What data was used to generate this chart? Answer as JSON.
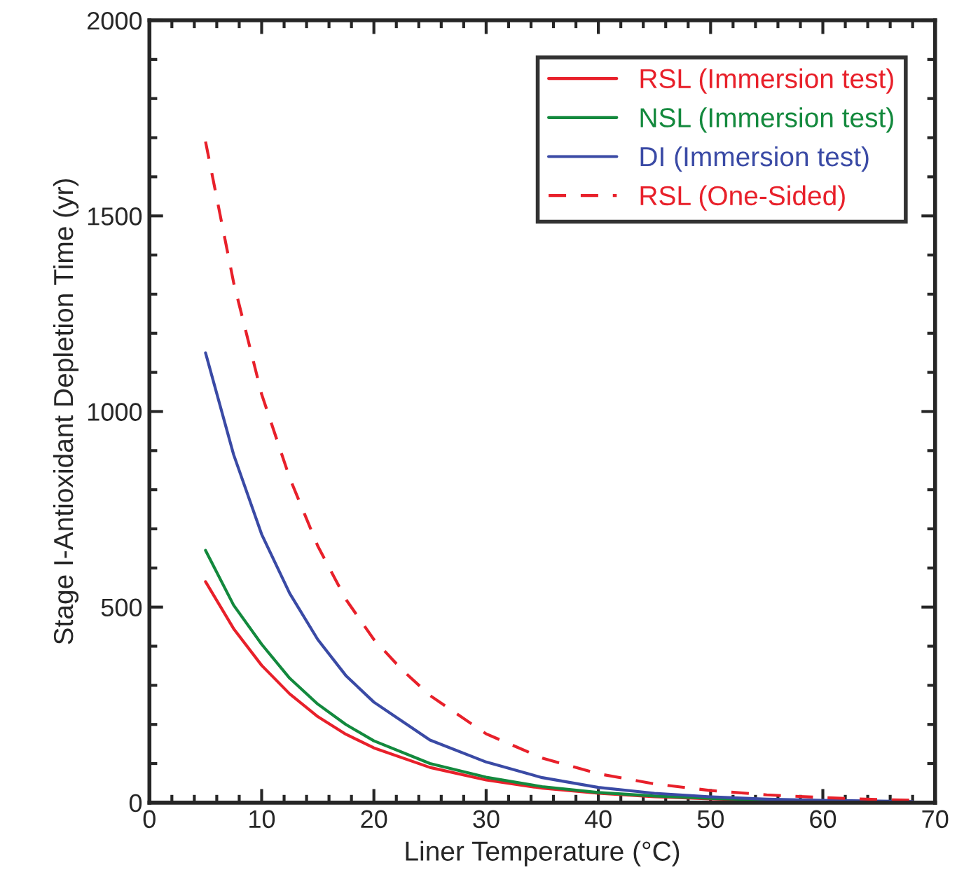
{
  "chart_data": {
    "type": "line",
    "xlabel": "Liner Temperature (°C)",
    "ylabel": "Stage I-Antioxidant Depletion Time (yr)",
    "xlim": [
      0,
      70
    ],
    "xticks": [
      0,
      10,
      20,
      30,
      40,
      50,
      60,
      70
    ],
    "ylim": [
      0,
      2000
    ],
    "yticks": [
      0,
      500,
      1000,
      1500,
      2000
    ],
    "grid": false,
    "legend": "top right",
    "series": [
      {
        "name": "RSL (Immersion test)",
        "color": "#e8202a",
        "line_style": "solid",
        "x": [
          5,
          7.5,
          10,
          12.5,
          15,
          17.5,
          20,
          25,
          30,
          35,
          40,
          45,
          50,
          55,
          60,
          65,
          68
        ],
        "values": [
          565,
          445,
          351,
          278,
          220,
          175,
          140,
          90,
          58,
          37,
          24,
          15,
          10,
          6,
          4,
          3,
          2
        ]
      },
      {
        "name": "NSL (Immersion test)",
        "color": "#13893d",
        "line_style": "solid",
        "x": [
          5,
          7.5,
          10,
          12.5,
          15,
          17.5,
          20,
          25,
          30,
          35,
          40,
          45,
          50,
          55,
          60
        ],
        "values": [
          645,
          505,
          405,
          318,
          252,
          200,
          158,
          100,
          65,
          41,
          26,
          17,
          11,
          7,
          4
        ]
      },
      {
        "name": "DI (Immersion test)",
        "color": "#3a4aa5",
        "line_style": "solid",
        "x": [
          5,
          7.5,
          10,
          12.5,
          15,
          17.5,
          20,
          25,
          30,
          35,
          40,
          45,
          50,
          55,
          60,
          65,
          68
        ],
        "values": [
          1150,
          890,
          686,
          535,
          417,
          325,
          257,
          160,
          104,
          64,
          39,
          24,
          15,
          9,
          6,
          4,
          3
        ]
      },
      {
        "name": "RSL (One-Sided)",
        "color": "#e8202a",
        "line_style": "dashed",
        "x": [
          5,
          7.5,
          10,
          12.5,
          15,
          17.5,
          20,
          22.5,
          25,
          30,
          35,
          40,
          45,
          50,
          55,
          60,
          65,
          68
        ],
        "values": [
          1690,
          1330,
          1044,
          830,
          656,
          520,
          417,
          340,
          274,
          176,
          114,
          74,
          48,
          31,
          20,
          13,
          8,
          6
        ]
      }
    ]
  }
}
